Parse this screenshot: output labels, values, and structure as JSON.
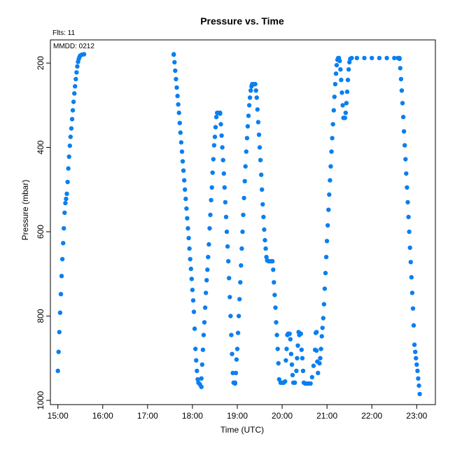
{
  "chart_data": {
    "type": "scatter",
    "title": "Pressure  vs. Time",
    "xlabel": "Time (UTC)",
    "ylabel": "Pressure (mbar)",
    "annotations": {
      "flts": "Flts: 11",
      "mmdd": "MMDD: 0212"
    },
    "x_ticks": [
      "15:00",
      "16:00",
      "17:00",
      "18:00",
      "19:00",
      "20:00",
      "21:00",
      "22:00",
      "23:00"
    ],
    "y_ticks": [
      200,
      400,
      600,
      800,
      1000
    ],
    "xlim": [
      "14:50",
      "23:25"
    ],
    "ylim": [
      1010,
      145
    ],
    "y_reversed": true,
    "marker_color": "#0a7ff0",
    "segments": [
      [
        [
          "15:00",
          930
        ],
        [
          "15:01",
          885
        ],
        [
          "15:02",
          838
        ],
        [
          "15:03",
          792
        ],
        [
          "15:04",
          748
        ],
        [
          "15:05",
          705
        ],
        [
          "15:06",
          665
        ],
        [
          "15:07",
          627
        ],
        [
          "15:08",
          592
        ],
        [
          "15:09",
          555
        ],
        [
          "15:10",
          532
        ],
        [
          "15:11",
          522
        ],
        [
          "15:12",
          510
        ],
        [
          "15:13",
          482
        ],
        [
          "15:14",
          450
        ],
        [
          "15:15",
          422
        ],
        [
          "15:16",
          396
        ],
        [
          "15:17",
          375
        ],
        [
          "15:18",
          355
        ],
        [
          "15:19",
          333
        ],
        [
          "15:20",
          312
        ],
        [
          "15:21",
          292
        ],
        [
          "15:22",
          272
        ],
        [
          "15:23",
          255
        ],
        [
          "15:24",
          238
        ],
        [
          "15:25",
          222
        ],
        [
          "15:26",
          208
        ],
        [
          "15:27",
          197
        ],
        [
          "15:28",
          190
        ],
        [
          "15:29",
          185
        ],
        [
          "15:30",
          182
        ],
        [
          "15:32",
          180
        ],
        [
          "15:35",
          179
        ],
        [
          "17:35",
          179
        ]
      ],
      [
        [
          "17:35",
          180
        ],
        [
          "17:36",
          198
        ],
        [
          "17:37",
          218
        ],
        [
          "17:38",
          238
        ],
        [
          "17:39",
          258
        ],
        [
          "17:40",
          278
        ],
        [
          "17:41",
          298
        ],
        [
          "17:42",
          318
        ],
        [
          "17:43",
          342
        ],
        [
          "17:44",
          365
        ],
        [
          "17:45",
          388
        ],
        [
          "17:46",
          410
        ],
        [
          "17:47",
          433
        ],
        [
          "17:48",
          455
        ],
        [
          "17:49",
          478
        ],
        [
          "17:50",
          500
        ],
        [
          "17:51",
          522
        ],
        [
          "17:52",
          545
        ],
        [
          "17:53",
          568
        ],
        [
          "17:54",
          592
        ],
        [
          "17:55",
          615
        ],
        [
          "17:56",
          640
        ],
        [
          "17:57",
          665
        ],
        [
          "17:58",
          688
        ],
        [
          "17:59",
          712
        ],
        [
          "18:00",
          738
        ],
        [
          "18:01",
          763
        ],
        [
          "18:02",
          790
        ],
        [
          "18:03",
          830
        ],
        [
          "18:04",
          878
        ],
        [
          "18:05",
          905
        ],
        [
          "18:06",
          930
        ],
        [
          "18:07",
          950
        ],
        [
          "18:08",
          958
        ],
        [
          "18:10",
          962
        ],
        [
          "18:12",
          968
        ]
      ],
      [
        [
          "18:12",
          948
        ],
        [
          "18:13",
          915
        ],
        [
          "18:14",
          880
        ],
        [
          "18:15",
          845
        ],
        [
          "18:16",
          815
        ],
        [
          "18:17",
          780
        ],
        [
          "18:18",
          745
        ],
        [
          "18:19",
          715
        ],
        [
          "18:20",
          690
        ],
        [
          "18:21",
          660
        ],
        [
          "18:22",
          630
        ],
        [
          "18:23",
          592
        ],
        [
          "18:24",
          560
        ],
        [
          "18:25",
          525
        ],
        [
          "18:26",
          495
        ],
        [
          "18:27",
          460
        ],
        [
          "18:28",
          428
        ],
        [
          "18:29",
          395
        ],
        [
          "18:30",
          375
        ],
        [
          "18:31",
          352
        ],
        [
          "18:32",
          328
        ],
        [
          "18:33",
          318
        ],
        [
          "18:35",
          318
        ],
        [
          "18:37",
          318
        ]
      ],
      [
        [
          "18:37",
          320
        ],
        [
          "18:38",
          345
        ],
        [
          "18:39",
          372
        ],
        [
          "18:40",
          400
        ],
        [
          "18:41",
          430
        ],
        [
          "18:42",
          462
        ],
        [
          "18:43",
          495
        ],
        [
          "18:44",
          530
        ],
        [
          "18:45",
          565
        ],
        [
          "18:46",
          600
        ],
        [
          "18:47",
          635
        ],
        [
          "18:48",
          670
        ],
        [
          "18:49",
          710
        ],
        [
          "18:50",
          755
        ],
        [
          "18:51",
          800
        ],
        [
          "18:52",
          845
        ],
        [
          "18:53",
          890
        ],
        [
          "18:54",
          935
        ],
        [
          "18:55",
          958
        ],
        [
          "18:57",
          960
        ]
      ],
      [
        [
          "18:57",
          958
        ],
        [
          "18:58",
          935
        ],
        [
          "18:59",
          903
        ],
        [
          "19:00",
          878
        ],
        [
          "19:01",
          840
        ],
        [
          "19:02",
          800
        ],
        [
          "19:03",
          760
        ],
        [
          "19:04",
          720
        ],
        [
          "19:05",
          680
        ],
        [
          "19:06",
          640
        ],
        [
          "19:07",
          600
        ],
        [
          "19:08",
          560
        ],
        [
          "19:09",
          520
        ],
        [
          "19:10",
          480
        ],
        [
          "19:11",
          445
        ],
        [
          "19:12",
          410
        ],
        [
          "19:13",
          378
        ],
        [
          "19:14",
          350
        ],
        [
          "19:15",
          325
        ],
        [
          "19:16",
          300
        ],
        [
          "19:17",
          282
        ],
        [
          "19:18",
          265
        ],
        [
          "19:19",
          255
        ],
        [
          "19:20",
          250
        ],
        [
          "19:22",
          250
        ],
        [
          "19:24",
          250
        ]
      ],
      [
        [
          "19:25",
          265
        ],
        [
          "19:26",
          282
        ],
        [
          "19:27",
          310
        ],
        [
          "19:28",
          340
        ],
        [
          "19:29",
          370
        ],
        [
          "19:30",
          400
        ],
        [
          "19:31",
          430
        ],
        [
          "19:32",
          465
        ],
        [
          "19:33",
          500
        ],
        [
          "19:34",
          535
        ],
        [
          "19:35",
          565
        ],
        [
          "19:36",
          595
        ],
        [
          "19:37",
          620
        ],
        [
          "19:38",
          640
        ],
        [
          "19:39",
          660
        ],
        [
          "19:40",
          668
        ],
        [
          "19:42",
          670
        ],
        [
          "19:45",
          670
        ],
        [
          "19:47",
          670
        ]
      ],
      [
        [
          "19:48",
          690
        ],
        [
          "19:49",
          720
        ],
        [
          "19:50",
          750
        ],
        [
          "19:51",
          780
        ],
        [
          "19:52",
          815
        ],
        [
          "19:53",
          845
        ],
        [
          "19:54",
          878
        ],
        [
          "19:55",
          912
        ],
        [
          "19:56",
          950
        ],
        [
          "19:58",
          958
        ],
        [
          "20:00",
          958
        ],
        [
          "20:02",
          958
        ],
        [
          "20:04",
          955
        ],
        [
          "20:05",
          905
        ],
        [
          "20:06",
          878
        ],
        [
          "20:07",
          845
        ],
        [
          "20:08",
          842
        ],
        [
          "20:09",
          842
        ],
        [
          "20:10",
          842
        ],
        [
          "20:11",
          855
        ],
        [
          "20:12",
          890
        ],
        [
          "20:13",
          915
        ],
        [
          "20:14",
          940
        ],
        [
          "20:15",
          958
        ],
        [
          "20:17",
          958
        ],
        [
          "20:19",
          930
        ],
        [
          "20:20",
          900
        ],
        [
          "20:21",
          870
        ],
        [
          "20:22",
          838
        ],
        [
          "20:23",
          845
        ],
        [
          "20:24",
          842
        ],
        [
          "20:25",
          842
        ],
        [
          "20:26",
          880
        ],
        [
          "20:27",
          900
        ],
        [
          "20:28",
          930
        ],
        [
          "20:29",
          958
        ],
        [
          "20:31",
          960
        ],
        [
          "20:33",
          960
        ],
        [
          "20:35",
          960
        ],
        [
          "20:38",
          960
        ],
        [
          "20:40",
          945
        ],
        [
          "20:42",
          918
        ],
        [
          "20:44",
          880
        ],
        [
          "20:45",
          840
        ],
        [
          "20:46",
          838
        ]
      ],
      [
        [
          "20:46",
          882
        ],
        [
          "20:47",
          908
        ],
        [
          "20:48",
          935
        ],
        [
          "20:50",
          912
        ],
        [
          "20:51",
          900
        ],
        [
          "20:52",
          878
        ],
        [
          "20:53",
          848
        ],
        [
          "20:54",
          828
        ],
        [
          "20:55",
          805
        ],
        [
          "20:56",
          772
        ],
        [
          "20:57",
          735
        ],
        [
          "20:58",
          698
        ],
        [
          "20:59",
          660
        ],
        [
          "21:00",
          622
        ],
        [
          "21:01",
          585
        ],
        [
          "21:02",
          548
        ],
        [
          "21:03",
          512
        ],
        [
          "21:04",
          478
        ],
        [
          "21:05",
          445
        ],
        [
          "21:06",
          410
        ],
        [
          "21:07",
          378
        ],
        [
          "21:08",
          345
        ],
        [
          "21:09",
          312
        ],
        [
          "21:10",
          280
        ],
        [
          "21:11",
          250
        ],
        [
          "21:12",
          225
        ],
        [
          "21:13",
          205
        ],
        [
          "21:14",
          192
        ],
        [
          "21:15",
          188
        ],
        [
          "21:16",
          188
        ]
      ],
      [
        [
          "21:17",
          195
        ],
        [
          "21:18",
          215
        ],
        [
          "21:19",
          240
        ],
        [
          "21:20",
          270
        ],
        [
          "21:21",
          300
        ],
        [
          "21:22",
          330
        ],
        [
          "21:23",
          330
        ],
        [
          "21:24",
          330
        ],
        [
          "21:25",
          318
        ],
        [
          "21:26",
          295
        ],
        [
          "21:27",
          268
        ],
        [
          "21:28",
          240
        ],
        [
          "21:29",
          215
        ],
        [
          "21:30",
          198
        ],
        [
          "21:31",
          190
        ],
        [
          "21:33",
          188
        ],
        [
          "21:40",
          188
        ],
        [
          "21:50",
          188
        ],
        [
          "22:00",
          188
        ],
        [
          "22:10",
          188
        ],
        [
          "22:20",
          188
        ],
        [
          "22:30",
          188
        ],
        [
          "22:35",
          188
        ],
        [
          "22:37",
          188
        ]
      ],
      [
        [
          "22:37",
          190
        ],
        [
          "22:38",
          212
        ],
        [
          "22:39",
          238
        ],
        [
          "22:40",
          265
        ],
        [
          "22:41",
          295
        ],
        [
          "22:42",
          328
        ],
        [
          "22:43",
          362
        ],
        [
          "22:44",
          395
        ],
        [
          "22:45",
          428
        ],
        [
          "22:46",
          462
        ],
        [
          "22:47",
          495
        ],
        [
          "22:48",
          530
        ],
        [
          "22:49",
          565
        ],
        [
          "22:50",
          600
        ],
        [
          "22:51",
          638
        ],
        [
          "22:52",
          672
        ],
        [
          "22:53",
          708
        ],
        [
          "22:54",
          745
        ],
        [
          "22:55",
          782
        ],
        [
          "22:56",
          822
        ],
        [
          "22:57",
          868
        ],
        [
          "22:58",
          885
        ],
        [
          "22:59",
          900
        ],
        [
          "23:00",
          915
        ],
        [
          "23:01",
          930
        ],
        [
          "23:02",
          948
        ],
        [
          "23:03",
          965
        ],
        [
          "23:04",
          985
        ]
      ]
    ]
  }
}
